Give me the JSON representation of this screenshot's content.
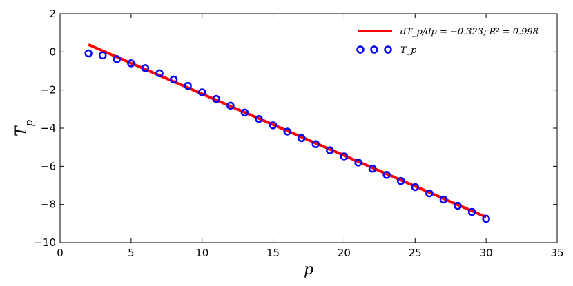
{
  "chart_data": {
    "type": "scatter",
    "xlabel": "p",
    "ylabel": "T",
    "ylabel_subscript": "p",
    "xlim": [
      0,
      35
    ],
    "ylim": [
      -10,
      2
    ],
    "xticks": [
      0,
      5,
      10,
      15,
      20,
      25,
      30,
      35
    ],
    "yticks": [
      -10,
      -8,
      -6,
      -4,
      -2,
      0,
      2
    ],
    "grid": false,
    "legend_position": "top-right",
    "series": [
      {
        "name": "T_p",
        "kind": "scatter",
        "marker": "open-circle",
        "color": "#0000ff",
        "x": [
          2,
          3,
          4,
          5,
          6,
          7,
          8,
          9,
          10,
          11,
          12,
          13,
          14,
          15,
          16,
          17,
          18,
          19,
          20,
          21,
          22,
          23,
          24,
          25,
          26,
          27,
          28,
          29,
          30
        ],
        "y": [
          -0.08,
          -0.18,
          -0.38,
          -0.6,
          -0.85,
          -1.12,
          -1.45,
          -1.78,
          -2.12,
          -2.47,
          -2.82,
          -3.18,
          -3.52,
          -3.85,
          -4.18,
          -4.52,
          -4.84,
          -5.16,
          -5.48,
          -5.8,
          -6.12,
          -6.45,
          -6.77,
          -7.09,
          -7.42,
          -7.74,
          -8.07,
          -8.39,
          -8.75
        ]
      },
      {
        "name": "dT_p/dp = -0.323; R^2 = 0.998",
        "kind": "line",
        "color": "#ff0000",
        "slope": -0.323,
        "r2": 0.998,
        "x": [
          2,
          30
        ],
        "y": [
          0.38,
          -8.66
        ]
      }
    ]
  },
  "legend": {
    "line_text": "dT_p/dp = −0.323; R² = 0.998",
    "scatter_text": "T_p"
  }
}
